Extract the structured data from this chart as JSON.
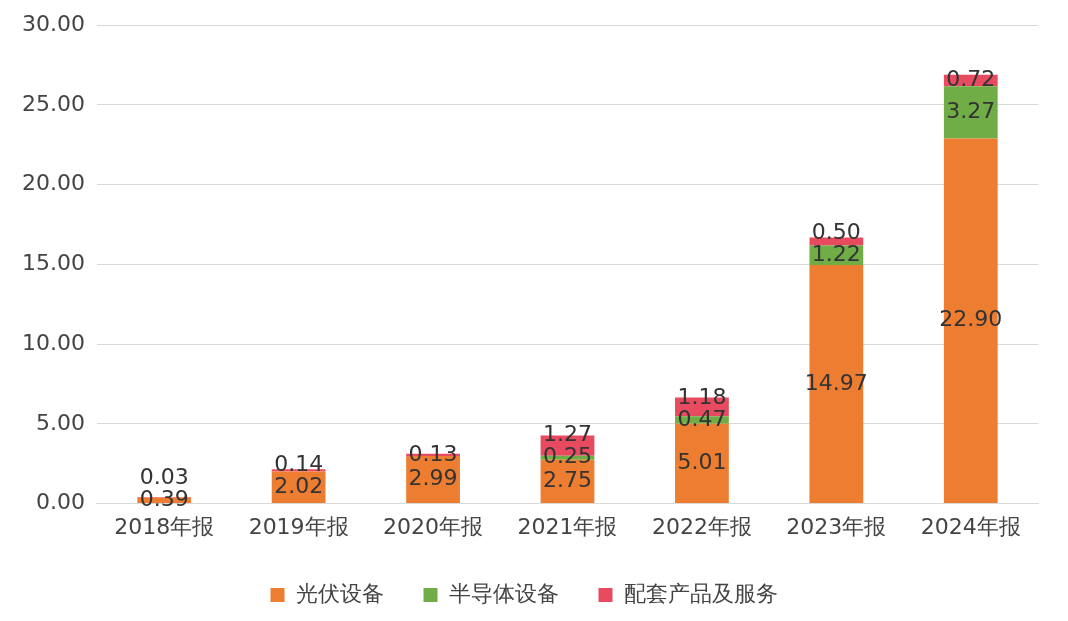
{
  "chart_data": {
    "type": "bar",
    "stacked": true,
    "categories": [
      "2018年报",
      "2019年报",
      "2020年报",
      "2021年报",
      "2022年报",
      "2023年报",
      "2024年报"
    ],
    "series": [
      {
        "name": "光伏设备",
        "color": "#ed7d31",
        "values": [
          0.39,
          2.02,
          2.99,
          2.75,
          5.01,
          14.97,
          22.9
        ],
        "value_labels": [
          "0.39",
          "2.02",
          "2.99",
          "2.75",
          "5.01",
          "14.97",
          "22.90"
        ]
      },
      {
        "name": "半导体设备",
        "color": "#70ad47",
        "values": [
          null,
          null,
          null,
          0.25,
          0.47,
          1.22,
          3.27
        ],
        "value_labels": [
          null,
          null,
          null,
          "0.25",
          "0.47",
          "1.22",
          "3.27"
        ]
      },
      {
        "name": "配套产品及服务",
        "color": "#e84a5f",
        "values": [
          0.03,
          0.14,
          0.13,
          1.27,
          1.18,
          0.5,
          0.72
        ],
        "value_labels": [
          "0.03",
          "0.14",
          "0.13",
          "1.27",
          "1.18",
          "0.50",
          "0.72"
        ]
      }
    ],
    "ylim": [
      0,
      30
    ],
    "yticks": [
      {
        "value": 0,
        "label": "0.00"
      },
      {
        "value": 5,
        "label": "5.00"
      },
      {
        "value": 10,
        "label": "10.00"
      },
      {
        "value": 15,
        "label": "15.00"
      },
      {
        "value": 20,
        "label": "20.00"
      },
      {
        "value": 25,
        "label": "25.00"
      },
      {
        "value": 30,
        "label": "30.00"
      }
    ],
    "grid": "y",
    "legend": "bottom"
  }
}
